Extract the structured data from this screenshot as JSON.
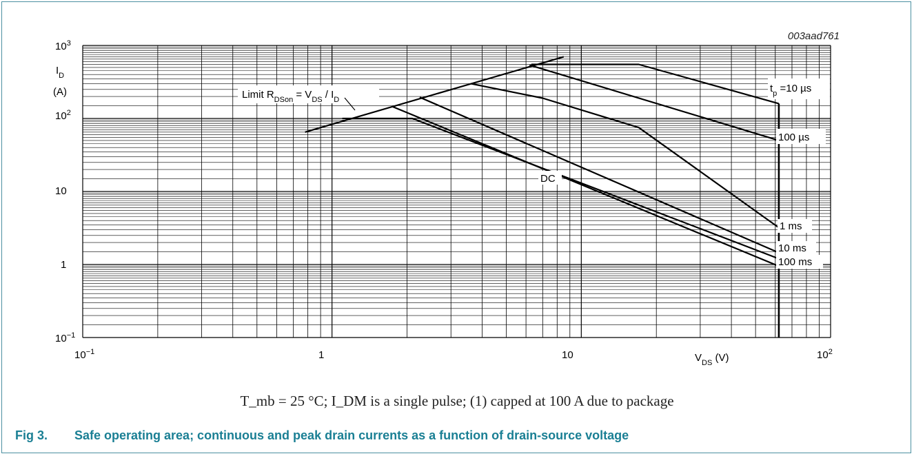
{
  "figure_id": "003aad761",
  "caption": "T_mb = 25 °C; I_DM is a single pulse; (1) capped at 100 A due to package",
  "fig_label": "Fig 3.",
  "fig_title": "Safe operating area; continuous and peak drain currents as a function of drain-source voltage",
  "chart_data": {
    "type": "line",
    "scale": "log-log",
    "xlim": [
      0.1,
      100
    ],
    "ylim": [
      0.1,
      1000
    ],
    "grid": true,
    "xlabel": "V_DS (V)",
    "ylabel": "I_D (A)",
    "x_ticks": [
      "10^-1",
      "1",
      "10",
      "10^2"
    ],
    "y_ticks": [
      "10^-1",
      "1",
      "10",
      "10^2",
      "10^3"
    ],
    "annotation": "Limit R_DSon = V_DS / I_D",
    "vmax_line": {
      "x": 62,
      "y_range": [
        0.1,
        160
      ]
    },
    "series": [
      {
        "name": "Limit R_DSon = V_DS / I_D",
        "points": [
          [
            0.78,
            65
          ],
          [
            8.5,
            700
          ]
        ]
      },
      {
        "name": "t_p = 10 µs",
        "points": [
          [
            6.3,
            550
          ],
          [
            17,
            550
          ],
          [
            62,
            160
          ]
        ]
      },
      {
        "name": "100 µs",
        "points": [
          [
            6.2,
            540
          ],
          [
            62,
            50
          ]
        ]
      },
      {
        "name": "1 ms",
        "points": [
          [
            3.6,
            300
          ],
          [
            7,
            190
          ],
          [
            17,
            75
          ],
          [
            62,
            3.2
          ]
        ]
      },
      {
        "name": "10 ms",
        "points": [
          [
            2.25,
            195
          ],
          [
            62,
            1.45
          ]
        ]
      },
      {
        "name": "DC",
        "points": [
          [
            1.1,
            100
          ],
          [
            2.1,
            100
          ],
          [
            62,
            1.2
          ]
        ]
      },
      {
        "name": "100 ms",
        "points": [
          [
            1.75,
            145
          ],
          [
            62,
            0.95
          ]
        ]
      }
    ],
    "curve_labels": [
      {
        "text": "t",
        "sub": "p",
        "rest": " =10 µs"
      },
      {
        "text": "100 µs"
      },
      {
        "text": "1 ms"
      },
      {
        "text": "10 ms"
      },
      {
        "text": "100 ms"
      },
      {
        "text": "DC"
      }
    ]
  }
}
